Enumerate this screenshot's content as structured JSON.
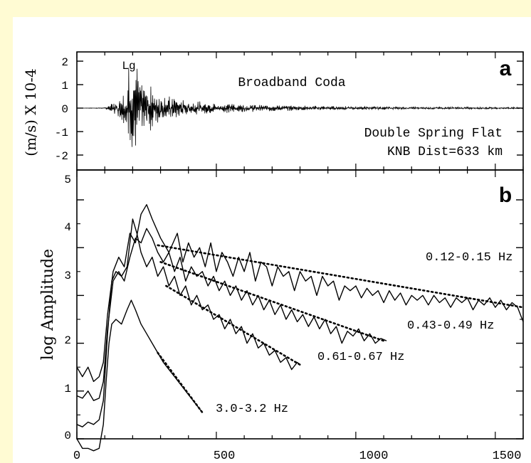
{
  "colors": {
    "page_background": "#fffbd3",
    "plot_background": "#ffffff",
    "ink": "#000000"
  },
  "chart_data": [
    {
      "type": "line",
      "panel_label": "a",
      "title": "Broadband Coda",
      "annotation_top": "Lg",
      "station_lines": [
        "Double Spring Flat",
        "KNB Dist=633 km"
      ],
      "ylabel": "(m/s) X 10-4",
      "ylim": [
        -2.4,
        2.4
      ],
      "xlim": [
        0,
        1600
      ],
      "y_ticks": [
        2,
        1,
        0,
        -1,
        -2
      ],
      "y_tick_labels": [
        "2",
        "1",
        "0",
        "-1",
        "-2"
      ],
      "series": [
        {
          "envelope": [
            [
              0,
              0
            ],
            [
              100,
              0.02
            ],
            [
              120,
              0.15
            ],
            [
              140,
              0.3
            ],
            [
              160,
              0.45
            ],
            [
              175,
              0.9
            ],
            [
              190,
              2.0
            ],
            [
              200,
              1.8
            ],
            [
              215,
              1.7
            ],
            [
              230,
              1.3
            ],
            [
              250,
              1.0
            ],
            [
              280,
              0.8
            ],
            [
              320,
              0.5
            ],
            [
              400,
              0.3
            ],
            [
              500,
              0.2
            ],
            [
              650,
              0.15
            ],
            [
              800,
              0.1
            ],
            [
              1000,
              0.07
            ],
            [
              1200,
              0.05
            ],
            [
              1400,
              0.04
            ],
            [
              1600,
              0.03
            ]
          ]
        }
      ]
    },
    {
      "type": "line",
      "panel_label": "b",
      "ylabel": "log Amplitude",
      "xlim": [
        0,
        1600
      ],
      "ylim": [
        -0.3,
        5.1
      ],
      "x_ticks": [
        0,
        500,
        1000,
        1500
      ],
      "x_tick_labels": [
        "0",
        "500",
        "1000",
        "1500"
      ],
      "y_ticks": [
        0,
        1,
        2,
        3,
        4,
        5
      ],
      "y_tick_labels": [
        "0",
        "1",
        "2",
        "3",
        "4",
        "5"
      ],
      "series": [
        {
          "name": "0.12-0.15 Hz",
          "points": [
            [
              0,
              1.5
            ],
            [
              20,
              1.3
            ],
            [
              40,
              1.5
            ],
            [
              60,
              1.2
            ],
            [
              80,
              1.3
            ],
            [
              95,
              1.6
            ],
            [
              110,
              2.6
            ],
            [
              130,
              3.5
            ],
            [
              150,
              3.8
            ],
            [
              170,
              3.6
            ],
            [
              190,
              4.3
            ],
            [
              210,
              4.1
            ],
            [
              230,
              4.7
            ],
            [
              250,
              4.9
            ],
            [
              270,
              4.6
            ],
            [
              300,
              4.2
            ],
            [
              330,
              3.9
            ],
            [
              360,
              4.3
            ],
            [
              380,
              3.7
            ],
            [
              400,
              4.1
            ],
            [
              420,
              3.8
            ],
            [
              440,
              4.0
            ],
            [
              460,
              3.6
            ],
            [
              480,
              4.1
            ],
            [
              500,
              3.5
            ],
            [
              520,
              3.9
            ],
            [
              540,
              3.7
            ],
            [
              560,
              3.4
            ],
            [
              580,
              3.8
            ],
            [
              600,
              3.5
            ],
            [
              620,
              3.9
            ],
            [
              640,
              3.3
            ],
            [
              660,
              3.7
            ],
            [
              680,
              3.6
            ],
            [
              700,
              3.2
            ],
            [
              720,
              3.6
            ],
            [
              740,
              3.4
            ],
            [
              760,
              3.5
            ],
            [
              780,
              3.1
            ],
            [
              800,
              3.5
            ],
            [
              820,
              3.3
            ],
            [
              840,
              3.4
            ],
            [
              860,
              3.0
            ],
            [
              880,
              3.4
            ],
            [
              900,
              3.2
            ],
            [
              920,
              3.3
            ],
            [
              940,
              2.9
            ],
            [
              960,
              3.2
            ],
            [
              980,
              3.1
            ],
            [
              1000,
              3.2
            ],
            [
              1020,
              2.95
            ],
            [
              1040,
              3.15
            ],
            [
              1060,
              3.0
            ],
            [
              1080,
              3.1
            ],
            [
              1100,
              2.85
            ],
            [
              1120,
              3.1
            ],
            [
              1140,
              2.9
            ],
            [
              1160,
              3.05
            ],
            [
              1180,
              2.8
            ],
            [
              1200,
              3.0
            ],
            [
              1220,
              2.9
            ],
            [
              1240,
              3.0
            ],
            [
              1260,
              2.8
            ],
            [
              1280,
              3.0
            ],
            [
              1300,
              2.85
            ],
            [
              1320,
              2.95
            ],
            [
              1340,
              2.75
            ],
            [
              1360,
              2.95
            ],
            [
              1380,
              2.85
            ],
            [
              1400,
              2.95
            ],
            [
              1420,
              2.7
            ],
            [
              1440,
              2.9
            ],
            [
              1460,
              2.8
            ],
            [
              1480,
              2.95
            ],
            [
              1500,
              2.75
            ],
            [
              1520,
              2.9
            ],
            [
              1540,
              2.7
            ],
            [
              1560,
              2.85
            ],
            [
              1580,
              2.75
            ],
            [
              1600,
              2.45
            ]
          ],
          "trend": [
            [
              290,
              4.05
            ],
            [
              1600,
              2.75
            ]
          ]
        },
        {
          "name": "0.43-0.49 Hz",
          "points": [
            [
              0,
              0.9
            ],
            [
              20,
              0.85
            ],
            [
              40,
              1.0
            ],
            [
              60,
              0.8
            ],
            [
              80,
              0.85
            ],
            [
              95,
              1.2
            ],
            [
              110,
              2.3
            ],
            [
              130,
              3.3
            ],
            [
              150,
              3.5
            ],
            [
              170,
              3.3
            ],
            [
              190,
              3.8
            ],
            [
              210,
              4.2
            ],
            [
              230,
              4.1
            ],
            [
              250,
              4.4
            ],
            [
              270,
              4.2
            ],
            [
              290,
              3.9
            ],
            [
              310,
              3.7
            ],
            [
              330,
              3.9
            ],
            [
              350,
              3.5
            ],
            [
              370,
              3.8
            ],
            [
              390,
              3.3
            ],
            [
              410,
              3.6
            ],
            [
              430,
              3.4
            ],
            [
              450,
              3.5
            ],
            [
              470,
              3.2
            ],
            [
              490,
              3.4
            ],
            [
              510,
              3.1
            ],
            [
              530,
              3.3
            ],
            [
              550,
              3.0
            ],
            [
              570,
              3.2
            ],
            [
              590,
              2.9
            ],
            [
              610,
              3.1
            ],
            [
              630,
              2.8
            ],
            [
              650,
              3.0
            ],
            [
              670,
              2.7
            ],
            [
              690,
              2.9
            ],
            [
              710,
              2.6
            ],
            [
              730,
              2.8
            ],
            [
              750,
              2.5
            ],
            [
              770,
              2.7
            ],
            [
              790,
              2.45
            ],
            [
              810,
              2.6
            ],
            [
              830,
              2.35
            ],
            [
              850,
              2.55
            ],
            [
              870,
              2.3
            ],
            [
              890,
              2.5
            ],
            [
              910,
              2.2
            ],
            [
              930,
              2.35
            ],
            [
              950,
              2.0
            ],
            [
              970,
              2.25
            ],
            [
              990,
              2.15
            ],
            [
              1010,
              2.3
            ],
            [
              1030,
              2.05
            ],
            [
              1050,
              2.2
            ],
            [
              1070,
              2.0
            ],
            [
              1090,
              2.1
            ],
            [
              1110,
              2.05
            ]
          ],
          "trend": [
            [
              300,
              3.7
            ],
            [
              1100,
              2.05
            ]
          ]
        },
        {
          "name": "0.61-0.67 Hz",
          "points": [
            [
              0,
              0.3
            ],
            [
              20,
              0.25
            ],
            [
              40,
              0.35
            ],
            [
              60,
              0.3
            ],
            [
              80,
              0.4
            ],
            [
              95,
              0.8
            ],
            [
              110,
              2.2
            ],
            [
              125,
              3.3
            ],
            [
              140,
              3.5
            ],
            [
              160,
              3.4
            ],
            [
              180,
              3.6
            ],
            [
              200,
              4.6
            ],
            [
              215,
              4.3
            ],
            [
              230,
              3.9
            ],
            [
              250,
              3.6
            ],
            [
              270,
              3.8
            ],
            [
              290,
              3.4
            ],
            [
              310,
              3.6
            ],
            [
              330,
              3.2
            ],
            [
              350,
              3.4
            ],
            [
              370,
              3.0
            ],
            [
              390,
              3.2
            ],
            [
              410,
              2.8
            ],
            [
              430,
              3.0
            ],
            [
              450,
              2.7
            ],
            [
              470,
              2.8
            ],
            [
              490,
              2.5
            ],
            [
              510,
              2.6
            ],
            [
              530,
              2.3
            ],
            [
              550,
              2.5
            ],
            [
              570,
              2.2
            ],
            [
              590,
              2.35
            ],
            [
              610,
              2.0
            ],
            [
              630,
              2.2
            ],
            [
              650,
              1.9
            ],
            [
              670,
              2.0
            ],
            [
              690,
              1.75
            ],
            [
              710,
              1.85
            ],
            [
              730,
              1.6
            ],
            [
              750,
              1.7
            ],
            [
              770,
              1.45
            ],
            [
              790,
              1.6
            ],
            [
              800,
              1.55
            ]
          ],
          "trend": [
            [
              320,
              3.2
            ],
            [
              800,
              1.55
            ]
          ]
        },
        {
          "name": "3.0-3.2 Hz",
          "points": [
            [
              0,
              0.0
            ],
            [
              10,
              -0.1
            ],
            [
              20,
              -0.2
            ],
            [
              40,
              -0.2
            ],
            [
              60,
              -0.25
            ],
            [
              80,
              -0.2
            ],
            [
              95,
              0.3
            ],
            [
              105,
              1.2
            ],
            [
              115,
              2.0
            ],
            [
              125,
              2.4
            ],
            [
              140,
              2.5
            ],
            [
              160,
              2.4
            ],
            [
              180,
              2.7
            ],
            [
              195,
              2.9
            ],
            [
              210,
              2.7
            ],
            [
              230,
              2.4
            ],
            [
              250,
              2.2
            ],
            [
              270,
              2.0
            ],
            [
              290,
              1.8
            ],
            [
              310,
              1.6
            ],
            [
              330,
              1.45
            ],
            [
              350,
              1.3
            ],
            [
              370,
              1.15
            ],
            [
              390,
              1.0
            ],
            [
              410,
              0.85
            ],
            [
              430,
              0.7
            ],
            [
              450,
              0.55
            ]
          ],
          "trend": [
            [
              290,
              1.8
            ],
            [
              450,
              0.55
            ]
          ]
        }
      ]
    }
  ]
}
